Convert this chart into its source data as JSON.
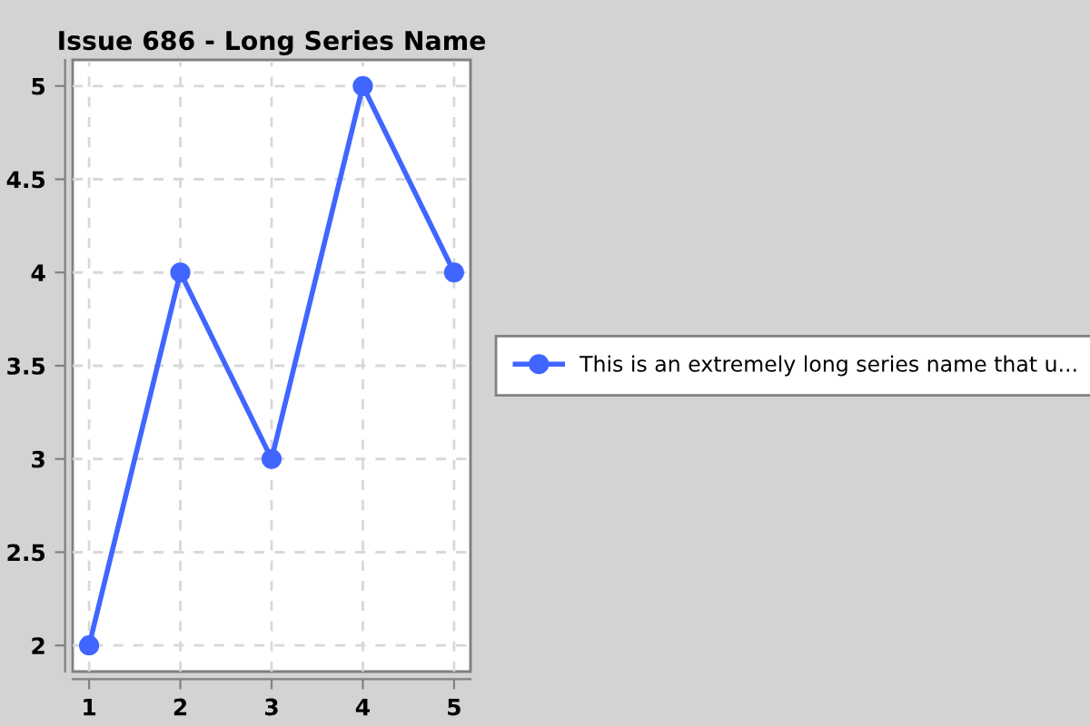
{
  "chart_data": {
    "type": "line",
    "title": "Issue 686 - Long Series Name",
    "x": [
      1,
      2,
      3,
      4,
      5
    ],
    "series": [
      {
        "name": "This is an extremely long series name that u...",
        "color": "#4066ff",
        "values": [
          2,
          4,
          3,
          5,
          4
        ]
      }
    ],
    "xlim": [
      0.82,
      5.18
    ],
    "ylim": [
      1.86,
      5.14
    ],
    "xticks": [
      1,
      2,
      3,
      4,
      5
    ],
    "yticks": [
      2,
      2.5,
      3,
      3.5,
      4,
      4.5,
      5
    ],
    "grid": true,
    "legend": "right",
    "marker": "circle",
    "line_style": "solid"
  }
}
